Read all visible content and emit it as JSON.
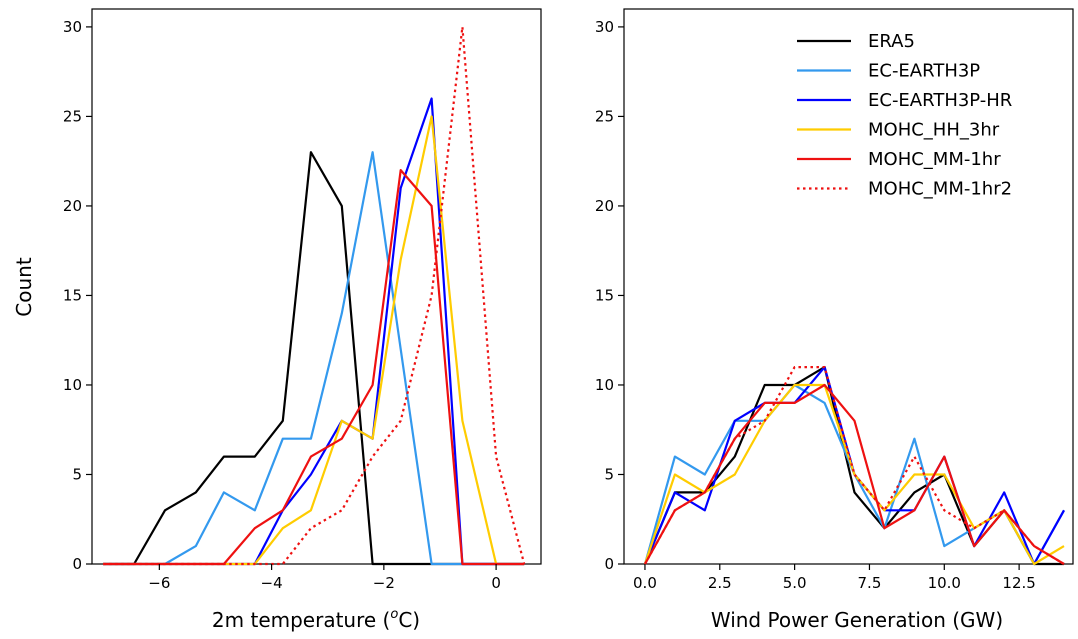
{
  "chart_data": [
    {
      "type": "line",
      "xlabel": "2m temperature (",
      "xlabel_unit_super": "o",
      "xlabel_unit": "C)",
      "ylabel": "Count",
      "xlim": [
        -7.2,
        0.8
      ],
      "ylim": [
        0,
        31
      ],
      "xticks": [
        -6,
        -4,
        -2,
        0
      ],
      "xtick_labels": [
        "−6",
        "−4",
        "−2",
        "0"
      ],
      "yticks": [
        0,
        5,
        10,
        15,
        20,
        25,
        30
      ],
      "ytick_labels": [
        "0",
        "5",
        "10",
        "15",
        "20",
        "25",
        "30"
      ],
      "grid": false,
      "series": [
        {
          "name": "ERA5",
          "color": "#000000",
          "dash": "solid",
          "x": [
            -7.0,
            -6.45,
            -5.9,
            -5.35,
            -4.85,
            -4.3,
            -3.8,
            -3.3,
            -2.75,
            -2.2,
            -1.7,
            -1.15,
            -0.6,
            0.0,
            0.5
          ],
          "y": [
            0,
            0,
            3,
            4,
            6,
            6,
            8,
            23,
            20,
            0,
            0,
            0,
            0,
            0,
            0
          ]
        },
        {
          "name": "EC-EARTH3P",
          "color": "#3399ee",
          "dash": "solid",
          "x": [
            -7.0,
            -6.45,
            -5.9,
            -5.35,
            -4.85,
            -4.3,
            -3.8,
            -3.3,
            -2.75,
            -2.2,
            -1.7,
            -1.15,
            -0.6,
            0.0,
            0.5
          ],
          "y": [
            0,
            0,
            0,
            1,
            4,
            3,
            7,
            7,
            14,
            23,
            12,
            0,
            0,
            0,
            0
          ]
        },
        {
          "name": "EC-EARTH3P-HR",
          "color": "#0000ff",
          "dash": "solid",
          "x": [
            -7.0,
            -6.45,
            -5.9,
            -5.35,
            -4.85,
            -4.3,
            -3.8,
            -3.3,
            -2.75,
            -2.2,
            -1.7,
            -1.15,
            -0.6,
            0.0,
            0.5
          ],
          "y": [
            0,
            0,
            0,
            0,
            0,
            0,
            3,
            5,
            8,
            7,
            21,
            26,
            0,
            0,
            0
          ]
        },
        {
          "name": "MOHC_HH_3hr",
          "color": "#ffcc00",
          "dash": "solid",
          "x": [
            -7.0,
            -6.45,
            -5.9,
            -5.35,
            -4.85,
            -4.3,
            -3.8,
            -3.3,
            -2.75,
            -2.2,
            -1.7,
            -1.15,
            -0.6,
            0.0,
            0.5
          ],
          "y": [
            0,
            0,
            0,
            0,
            0,
            0,
            2,
            3,
            8,
            7,
            17,
            25,
            8,
            0,
            0
          ]
        },
        {
          "name": "MOHC_MM-1hr",
          "color": "#ee1111",
          "dash": "solid",
          "x": [
            -7.0,
            -6.45,
            -5.9,
            -5.35,
            -4.85,
            -4.3,
            -3.8,
            -3.3,
            -2.75,
            -2.2,
            -1.7,
            -1.15,
            -0.6,
            0.0,
            0.5
          ],
          "y": [
            0,
            0,
            0,
            0,
            0,
            2,
            3,
            6,
            7,
            10,
            22,
            20,
            0,
            0,
            0
          ]
        },
        {
          "name": "MOHC_MM-1hr2",
          "color": "#ee1111",
          "dash": "dotted",
          "x": [
            -7.0,
            -6.45,
            -5.9,
            -5.35,
            -4.85,
            -4.3,
            -3.8,
            -3.3,
            -2.75,
            -2.2,
            -1.7,
            -1.15,
            -0.6,
            0.0,
            0.5
          ],
          "y": [
            0,
            0,
            0,
            0,
            0,
            0,
            0,
            2,
            3,
            6,
            8,
            15,
            30,
            6,
            0
          ]
        }
      ]
    },
    {
      "type": "line",
      "xlabel": "Wind Power Generation (GW)",
      "ylabel": "",
      "xlim": [
        -0.7,
        14.3
      ],
      "ylim": [
        0,
        31
      ],
      "xticks": [
        0.0,
        2.5,
        5.0,
        7.5,
        10.0,
        12.5
      ],
      "xtick_labels": [
        "0.0",
        "2.5",
        "5.0",
        "7.5",
        "10.0",
        "12.5"
      ],
      "yticks": [
        0,
        5,
        10,
        15,
        20,
        25,
        30
      ],
      "ytick_labels": [
        "0",
        "5",
        "10",
        "15",
        "20",
        "25",
        "30"
      ],
      "grid": false,
      "legend": "top-right",
      "series": [
        {
          "name": "ERA5",
          "color": "#000000",
          "dash": "solid",
          "x": [
            0,
            1,
            2,
            3,
            4,
            5,
            6,
            7,
            8,
            9,
            10,
            11,
            12,
            13,
            14
          ],
          "y": [
            0,
            4,
            4,
            6,
            10,
            10,
            11,
            4,
            2,
            4,
            5,
            1,
            3,
            0,
            0
          ]
        },
        {
          "name": "EC-EARTH3P",
          "color": "#3399ee",
          "dash": "solid",
          "x": [
            0,
            1,
            2,
            3,
            4,
            5,
            6,
            7,
            8,
            9,
            10,
            11,
            12,
            13,
            14
          ],
          "y": [
            0,
            6,
            5,
            8,
            8,
            10,
            9,
            5,
            2,
            7,
            1,
            2,
            3,
            0,
            3
          ]
        },
        {
          "name": "EC-EARTH3P-HR",
          "color": "#0000ff",
          "dash": "solid",
          "x": [
            0,
            1,
            2,
            3,
            4,
            5,
            6,
            7,
            8,
            9,
            10,
            11,
            12,
            13,
            14
          ],
          "y": [
            0,
            4,
            3,
            8,
            9,
            9,
            11,
            5,
            3,
            3,
            6,
            1,
            4,
            0,
            3
          ]
        },
        {
          "name": "MOHC_HH_3hr",
          "color": "#ffcc00",
          "dash": "solid",
          "x": [
            0,
            1,
            2,
            3,
            4,
            5,
            6,
            7,
            8,
            9,
            10,
            11,
            12,
            13,
            14
          ],
          "y": [
            0,
            5,
            4,
            5,
            8,
            10,
            10,
            5,
            3,
            5,
            5,
            2,
            3,
            0,
            1
          ]
        },
        {
          "name": "MOHC_MM-1hr",
          "color": "#ee1111",
          "dash": "solid",
          "x": [
            0,
            1,
            2,
            3,
            4,
            5,
            6,
            7,
            8,
            9,
            10,
            11,
            12,
            13,
            14
          ],
          "y": [
            0,
            3,
            4,
            7,
            9,
            9,
            10,
            8,
            2,
            3,
            6,
            1,
            3,
            1,
            0
          ]
        },
        {
          "name": "MOHC_MM-1hr2",
          "color": "#ee1111",
          "dash": "dotted",
          "x": [
            0,
            1,
            2,
            3,
            4,
            5,
            6,
            7,
            8,
            9,
            10,
            11,
            12,
            13,
            14
          ],
          "y": [
            0,
            3,
            4,
            7,
            8,
            11,
            11,
            5,
            3,
            6,
            3,
            2,
            3,
            1,
            0
          ]
        }
      ]
    }
  ]
}
